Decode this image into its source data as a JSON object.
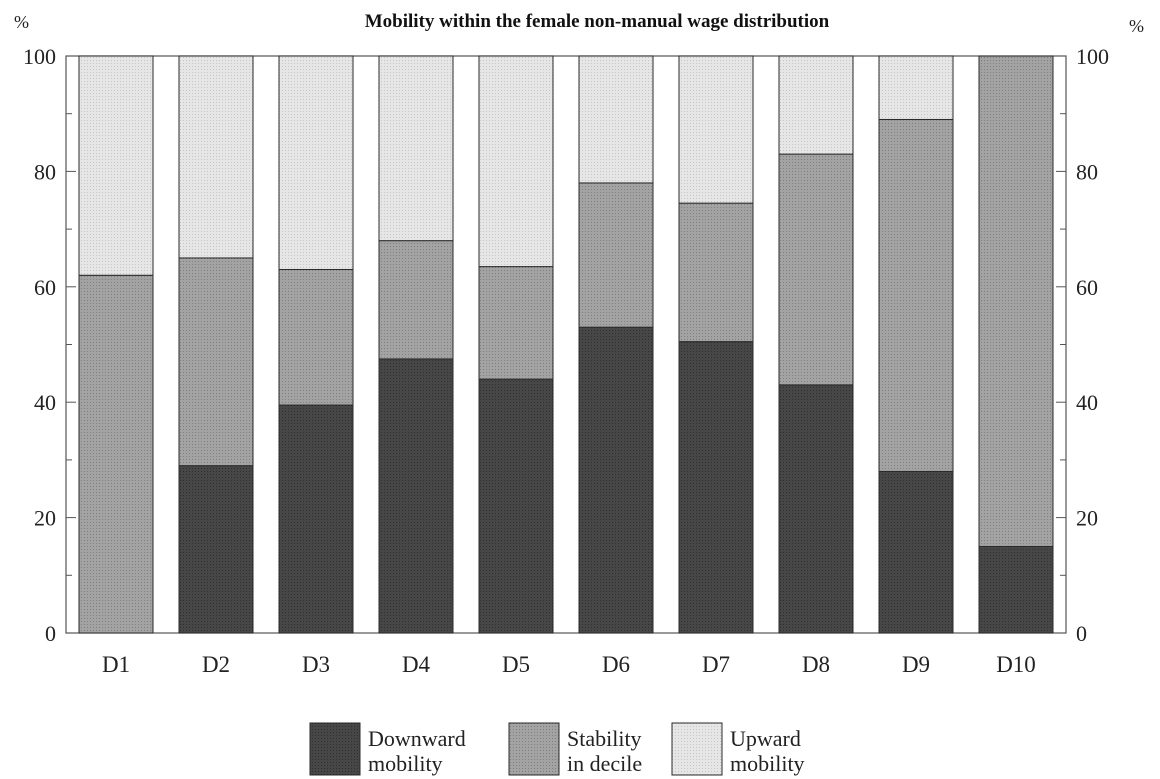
{
  "chart_data": {
    "type": "bar",
    "stacked": true,
    "title": "Mobility  within the female non-manual wage distribution",
    "y_unit_left": "%",
    "y_unit_right": "%",
    "ylim": [
      0,
      100
    ],
    "yticks": [
      0,
      20,
      40,
      60,
      80,
      100
    ],
    "categories": [
      "D1",
      "D2",
      "D3",
      "D4",
      "D5",
      "D6",
      "D7",
      "D8",
      "D9",
      "D10"
    ],
    "series": [
      {
        "name": "Downward mobility",
        "legend_lines": [
          "Downward",
          "mobility"
        ],
        "color": "#3f3f3f",
        "values": [
          0,
          29,
          39.5,
          47.5,
          44,
          53,
          50.5,
          43,
          28,
          15
        ]
      },
      {
        "name": "Stability in decile",
        "legend_lines": [
          "Stability",
          "in decile"
        ],
        "color": "#9a9a9a",
        "values": [
          62,
          36,
          23.5,
          20.5,
          19.5,
          25,
          24,
          40,
          61,
          85
        ]
      },
      {
        "name": "Upward mobility",
        "legend_lines": [
          "Upward",
          "mobility"
        ],
        "color": "#dedede",
        "values": [
          38,
          35,
          37,
          32,
          36.5,
          22,
          25.5,
          17,
          11,
          0
        ]
      }
    ],
    "grid": false,
    "legend_position": "bottom"
  }
}
